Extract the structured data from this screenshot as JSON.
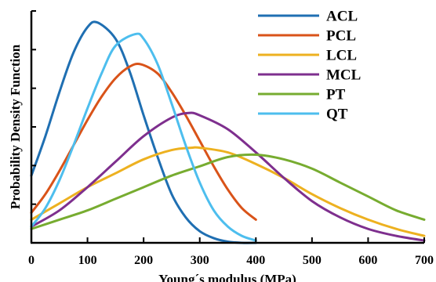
{
  "chart_data": {
    "type": "line",
    "xlabel": "Young´s modulus (MPa)",
    "ylabel": "Probability Density Function",
    "xlim": [
      0,
      700
    ],
    "ylim": [
      0,
      1
    ],
    "x_ticks": [
      0,
      100,
      200,
      300,
      400,
      500,
      600,
      700
    ],
    "y_tick_labels_shown": false,
    "grid": false,
    "legend_position": "top-right",
    "series": [
      {
        "name": "ACL",
        "color": "#1f6fb2",
        "x": [
          0,
          25,
          50,
          75,
          100,
          118,
          150,
          175,
          200,
          225,
          250,
          275,
          300,
          325,
          350,
          375,
          400
        ],
        "y": [
          0.29,
          0.46,
          0.65,
          0.82,
          0.93,
          0.95,
          0.88,
          0.74,
          0.55,
          0.37,
          0.21,
          0.11,
          0.05,
          0.02,
          0.005,
          0.0,
          0.0
        ]
      },
      {
        "name": "PCL",
        "color": "#d95319",
        "x": [
          0,
          25,
          50,
          75,
          100,
          125,
          150,
          175,
          195,
          225,
          250,
          275,
          300,
          325,
          350,
          375,
          400
        ],
        "y": [
          0.13,
          0.21,
          0.31,
          0.42,
          0.53,
          0.63,
          0.71,
          0.76,
          0.77,
          0.73,
          0.65,
          0.55,
          0.44,
          0.33,
          0.23,
          0.15,
          0.1
        ]
      },
      {
        "name": "LCL",
        "color": "#edb120",
        "x": [
          0,
          50,
          100,
          150,
          200,
          250,
          285,
          300,
          350,
          400,
          450,
          500,
          550,
          600,
          650,
          700
        ],
        "y": [
          0.1,
          0.17,
          0.24,
          0.3,
          0.36,
          0.4,
          0.41,
          0.41,
          0.39,
          0.34,
          0.28,
          0.21,
          0.15,
          0.1,
          0.06,
          0.03
        ]
      },
      {
        "name": "MCL",
        "color": "#7e2f8e",
        "x": [
          0,
          50,
          100,
          150,
          200,
          250,
          280,
          300,
          350,
          400,
          450,
          500,
          550,
          600,
          650,
          700
        ],
        "y": [
          0.07,
          0.14,
          0.24,
          0.35,
          0.46,
          0.54,
          0.56,
          0.55,
          0.49,
          0.39,
          0.28,
          0.18,
          0.11,
          0.06,
          0.03,
          0.01
        ]
      },
      {
        "name": "PT",
        "color": "#77ac30",
        "x": [
          0,
          50,
          100,
          150,
          200,
          250,
          300,
          350,
          400,
          450,
          500,
          550,
          600,
          650,
          700
        ],
        "y": [
          0.06,
          0.1,
          0.14,
          0.19,
          0.24,
          0.29,
          0.33,
          0.37,
          0.38,
          0.36,
          0.32,
          0.26,
          0.2,
          0.14,
          0.1
        ]
      },
      {
        "name": "QT",
        "color": "#4dbeee",
        "x": [
          0,
          25,
          50,
          75,
          100,
          125,
          150,
          185,
          200,
          225,
          250,
          275,
          300,
          325,
          350,
          375,
          400
        ],
        "y": [
          0.07,
          0.15,
          0.27,
          0.42,
          0.58,
          0.73,
          0.85,
          0.9,
          0.88,
          0.77,
          0.6,
          0.42,
          0.26,
          0.14,
          0.07,
          0.03,
          0.01
        ]
      }
    ]
  }
}
